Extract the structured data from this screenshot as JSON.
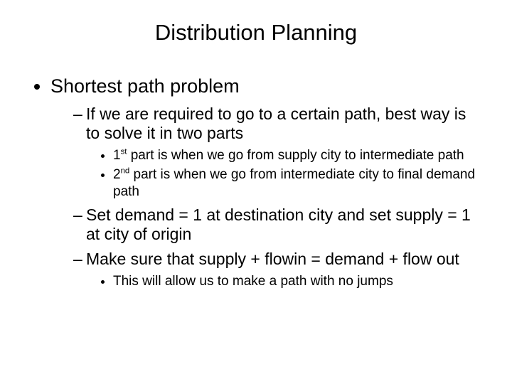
{
  "title": "Distribution Planning",
  "bullet1": "Shortest path problem",
  "sub1": "If we are required to go to a certain path, best way is to solve it in two parts",
  "sub1a_pre": "1",
  "sub1a_sup": "st",
  "sub1a_post": " part is when we go from supply city to intermediate path",
  "sub1b_pre": "2",
  "sub1b_sup": "nd",
  "sub1b_post": " part is when we go from intermediate city to final demand path",
  "sub2": "Set demand = 1 at destination city and set supply = 1 at city of origin",
  "sub3": "Make sure that supply + flowin = demand + flow out",
  "sub3a": "This will allow us to make a path with no jumps",
  "colors": {
    "background": "#ffffff",
    "text": "#000000"
  },
  "fonts": {
    "title_size": 31,
    "l1_size": 27,
    "l2_size": 23,
    "l3_size": 19,
    "family": "Arial"
  }
}
